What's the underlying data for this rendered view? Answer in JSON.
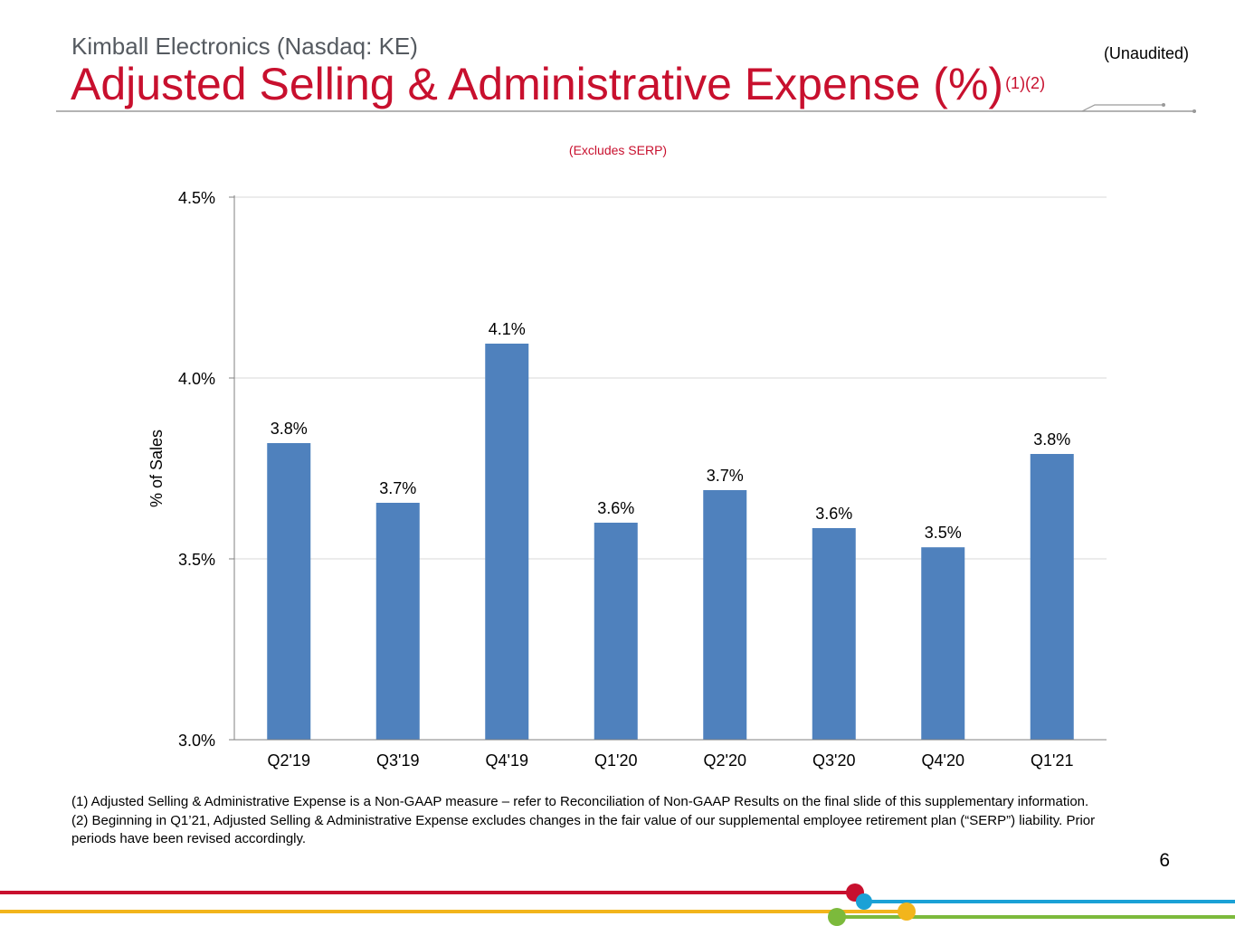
{
  "header": {
    "company": "Kimball Electronics (Nasdaq: KE)",
    "title": "Adjusted Selling & Administrative Expense (%)",
    "title_superscript": "(1)(2)",
    "unaudited": "(Unaudited)"
  },
  "chart_data": {
    "type": "bar",
    "subtitle": "(Excludes SERP)",
    "ylabel": "% of Sales",
    "xlabel": "",
    "ylim": [
      3.0,
      4.5
    ],
    "yticks": [
      3.0,
      3.5,
      4.0,
      4.5
    ],
    "ytick_labels": [
      "3.0%",
      "3.5%",
      "4.0%",
      "4.5%"
    ],
    "grid": true,
    "categories": [
      "Q2'19",
      "Q3'19",
      "Q4'19",
      "Q1'20",
      "Q2'20",
      "Q3'20",
      "Q4'20",
      "Q1'21"
    ],
    "values": [
      3.82,
      3.655,
      4.095,
      3.6,
      3.69,
      3.585,
      3.532,
      3.79
    ],
    "data_labels": [
      "3.8%",
      "3.7%",
      "4.1%",
      "3.6%",
      "3.7%",
      "3.6%",
      "3.5%",
      "3.8%"
    ],
    "bar_color": "#4f81bd"
  },
  "footnotes": {
    "note1": "(1)  Adjusted Selling & Administrative Expense is a Non-GAAP measure – refer to Reconciliation of Non-GAAP Results on the final slide of this supplementary information.",
    "note2": "(2)  Beginning in Q1’21, Adjusted Selling & Administrative Expense excludes changes in the fair value of our supplemental employee retirement plan (“SERP”) liability.  Prior periods have been revised accordingly."
  },
  "page_number": "6",
  "colors": {
    "title_red": "#c8102e",
    "line_red": "#c8102e",
    "line_blue": "#1ba1d6",
    "line_yellow": "#f2b51c",
    "line_green": "#7cba3c"
  }
}
